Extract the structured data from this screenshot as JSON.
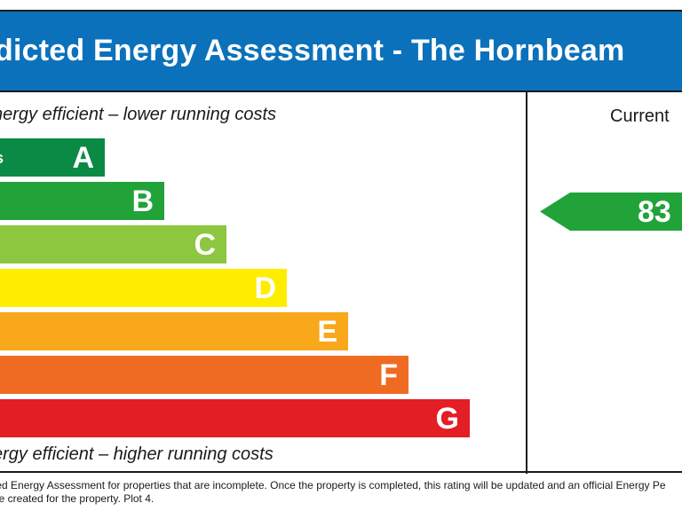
{
  "header": {
    "title": "dicted Energy Assessment - The Hornbeam"
  },
  "scale": {
    "top_caption": "nergy efficient – lower running costs",
    "bottom_caption": "ergy efficient – higher running costs",
    "bands": [
      {
        "letter": "A",
        "range": "s",
        "color": "#0a8a45"
      },
      {
        "letter": "B",
        "range": "",
        "color": "#21a33a"
      },
      {
        "letter": "C",
        "range": "",
        "color": "#8dc63f"
      },
      {
        "letter": "D",
        "range": "",
        "color": "#ffed00"
      },
      {
        "letter": "E",
        "range": "",
        "color": "#f9a71b"
      },
      {
        "letter": "F",
        "range": "",
        "color": "#ef6b22"
      },
      {
        "letter": "G",
        "range": "",
        "color": "#e31e25"
      }
    ]
  },
  "current": {
    "label": "Current",
    "value": "83",
    "color": "#21a33a"
  },
  "footnote": {
    "line1": "ted Energy Assessment for properties that are incomplete. Once the property is completed, this rating will be updated and an official Energy Pe",
    "line2": "be created for the property. Plot 4."
  }
}
